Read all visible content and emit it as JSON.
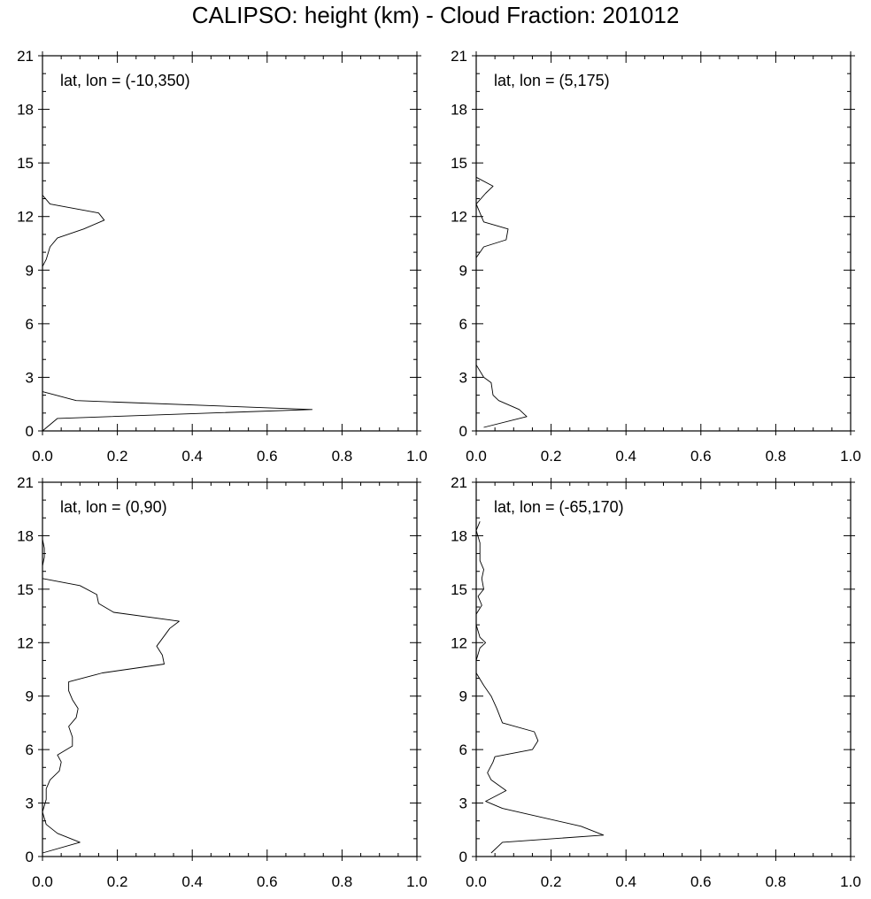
{
  "title": "CALIPSO: height (km) - Cloud Fraction: 201012",
  "chart_data": [
    {
      "type": "line",
      "annotation": "lat, lon = (-10,350)",
      "xlim": [
        0,
        1
      ],
      "ylim": [
        0,
        21
      ],
      "x_ticks": [
        "0.0",
        "0.2",
        "0.4",
        "0.6",
        "0.8",
        "1.0"
      ],
      "y_ticks": [
        "0",
        "3",
        "6",
        "9",
        "12",
        "15",
        "18",
        "21"
      ],
      "points": [
        [
          0.0,
          0.0
        ],
        [
          0.04,
          0.7
        ],
        [
          0.72,
          1.2
        ],
        [
          0.09,
          1.7
        ],
        [
          0.0,
          2.2
        ],
        [
          0.0,
          9.2
        ],
        [
          0.01,
          9.6
        ],
        [
          0.02,
          10.3
        ],
        [
          0.04,
          10.8
        ],
        [
          0.11,
          11.3
        ],
        [
          0.165,
          11.8
        ],
        [
          0.15,
          12.2
        ],
        [
          0.02,
          12.7
        ],
        [
          0.0,
          13.2
        ],
        [
          0.0,
          17.5
        ],
        [
          0.0,
          21.0
        ]
      ]
    },
    {
      "type": "line",
      "annotation": "lat, lon = (5,175)",
      "xlim": [
        0,
        1
      ],
      "ylim": [
        0,
        21
      ],
      "x_ticks": [
        "0.0",
        "0.2",
        "0.4",
        "0.6",
        "0.8",
        "1.0"
      ],
      "y_ticks": [
        "0",
        "3",
        "6",
        "9",
        "12",
        "15",
        "18",
        "21"
      ],
      "points": [
        [
          0.02,
          0.2
        ],
        [
          0.135,
          0.8
        ],
        [
          0.115,
          1.2
        ],
        [
          0.06,
          1.7
        ],
        [
          0.045,
          2.0
        ],
        [
          0.04,
          2.7
        ],
        [
          0.02,
          3.0
        ],
        [
          0.0,
          3.7
        ],
        [
          0.0,
          9.7
        ],
        [
          0.02,
          10.3
        ],
        [
          0.08,
          10.7
        ],
        [
          0.085,
          11.3
        ],
        [
          0.02,
          11.7
        ],
        [
          0.0,
          12.7
        ],
        [
          0.025,
          13.3
        ],
        [
          0.045,
          13.7
        ],
        [
          0.0,
          14.2
        ]
      ]
    },
    {
      "type": "line",
      "annotation": "lat, lon = (0,90)",
      "xlim": [
        0,
        1
      ],
      "ylim": [
        0,
        21
      ],
      "x_ticks": [
        "0.0",
        "0.2",
        "0.4",
        "0.6",
        "0.8",
        "1.0"
      ],
      "y_ticks": [
        "0",
        "3",
        "6",
        "9",
        "12",
        "15",
        "18",
        "21"
      ],
      "points": [
        [
          0.0,
          0.2
        ],
        [
          0.1,
          0.8
        ],
        [
          0.04,
          1.3
        ],
        [
          0.01,
          1.8
        ],
        [
          0.0,
          2.5
        ],
        [
          0.01,
          3.2
        ],
        [
          0.01,
          3.8
        ],
        [
          0.02,
          4.3
        ],
        [
          0.045,
          4.8
        ],
        [
          0.05,
          5.3
        ],
        [
          0.04,
          5.7
        ],
        [
          0.08,
          6.2
        ],
        [
          0.08,
          6.7
        ],
        [
          0.07,
          7.3
        ],
        [
          0.09,
          7.8
        ],
        [
          0.095,
          8.3
        ],
        [
          0.08,
          8.8
        ],
        [
          0.07,
          9.3
        ],
        [
          0.07,
          9.8
        ],
        [
          0.16,
          10.3
        ],
        [
          0.325,
          10.8
        ],
        [
          0.32,
          11.3
        ],
        [
          0.305,
          11.8
        ],
        [
          0.34,
          12.8
        ],
        [
          0.365,
          13.2
        ],
        [
          0.19,
          13.7
        ],
        [
          0.15,
          14.2
        ],
        [
          0.145,
          14.7
        ],
        [
          0.1,
          15.2
        ],
        [
          0.0,
          15.6
        ],
        [
          0.0,
          16.3
        ],
        [
          0.005,
          16.8
        ],
        [
          0.005,
          17.3
        ],
        [
          0.0,
          17.8
        ],
        [
          0.0,
          18.6
        ]
      ]
    },
    {
      "type": "line",
      "annotation": "lat, lon = (-65,170)",
      "xlim": [
        0,
        1
      ],
      "ylim": [
        0,
        21
      ],
      "x_ticks": [
        "0.0",
        "0.2",
        "0.4",
        "0.6",
        "0.8",
        "1.0"
      ],
      "y_ticks": [
        "0",
        "3",
        "6",
        "9",
        "12",
        "15",
        "18",
        "21"
      ],
      "points": [
        [
          0.04,
          0.2
        ],
        [
          0.07,
          0.8
        ],
        [
          0.34,
          1.2
        ],
        [
          0.28,
          1.7
        ],
        [
          0.07,
          2.7
        ],
        [
          0.025,
          3.1
        ],
        [
          0.08,
          3.7
        ],
        [
          0.04,
          4.3
        ],
        [
          0.03,
          4.7
        ],
        [
          0.045,
          5.3
        ],
        [
          0.05,
          5.6
        ],
        [
          0.15,
          6.0
        ],
        [
          0.165,
          6.5
        ],
        [
          0.155,
          7.0
        ],
        [
          0.07,
          7.5
        ],
        [
          0.055,
          8.3
        ],
        [
          0.04,
          9.0
        ],
        [
          0.02,
          9.6
        ],
        [
          0.0,
          10.3
        ],
        [
          0.0,
          11.0
        ],
        [
          0.01,
          11.7
        ],
        [
          0.025,
          12.0
        ],
        [
          0.01,
          12.3
        ],
        [
          0.0,
          13.0
        ],
        [
          0.0,
          13.6
        ],
        [
          0.015,
          14.1
        ],
        [
          0.005,
          14.6
        ],
        [
          0.02,
          15.0
        ],
        [
          0.015,
          15.6
        ],
        [
          0.02,
          16.1
        ],
        [
          0.01,
          16.6
        ],
        [
          0.01,
          17.1
        ],
        [
          0.01,
          17.6
        ],
        [
          0.0,
          18.3
        ],
        [
          0.01,
          18.8
        ]
      ]
    }
  ]
}
